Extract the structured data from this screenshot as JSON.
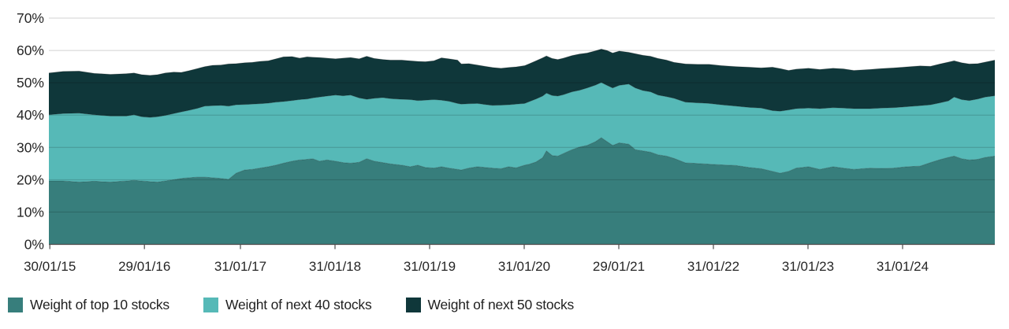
{
  "chart_data": {
    "type": "area",
    "stacked": true,
    "title": "",
    "xlabel": "",
    "ylabel": "",
    "grid": "horizontal",
    "legend_position": "bottom-left",
    "ylim": [
      0,
      70
    ],
    "y_ticks": [
      {
        "label": "0%",
        "value": 0
      },
      {
        "label": "10%",
        "value": 10
      },
      {
        "label": "20%",
        "value": 20
      },
      {
        "label": "30%",
        "value": 30
      },
      {
        "label": "40%",
        "value": 40
      },
      {
        "label": "50%",
        "value": 50
      },
      {
        "label": "60%",
        "value": 60
      },
      {
        "label": "70%",
        "value": 70
      }
    ],
    "x_ticks": [
      {
        "label": "30/01/15",
        "pos": 0.001
      },
      {
        "label": "29/01/16",
        "pos": 0.101
      },
      {
        "label": "31/01/17",
        "pos": 0.2025
      },
      {
        "label": "31/01/18",
        "pos": 0.3025
      },
      {
        "label": "31/01/19",
        "pos": 0.4025
      },
      {
        "label": "31/01/20",
        "pos": 0.5025
      },
      {
        "label": "29/01/21",
        "pos": 0.6025
      },
      {
        "label": "31/01/22",
        "pos": 0.7025
      },
      {
        "label": "31/01/23",
        "pos": 0.8025
      },
      {
        "label": "31/01/24",
        "pos": 0.9025
      }
    ],
    "x": [
      0.0,
      0.015,
      0.032,
      0.048,
      0.065,
      0.082,
      0.09,
      0.098,
      0.107,
      0.115,
      0.123,
      0.132,
      0.14,
      0.148,
      0.157,
      0.165,
      0.173,
      0.182,
      0.19,
      0.198,
      0.207,
      0.215,
      0.223,
      0.232,
      0.24,
      0.248,
      0.257,
      0.265,
      0.273,
      0.279,
      0.286,
      0.294,
      0.303,
      0.311,
      0.319,
      0.328,
      0.336,
      0.344,
      0.353,
      0.361,
      0.373,
      0.382,
      0.39,
      0.398,
      0.407,
      0.415,
      0.423,
      0.432,
      0.436,
      0.444,
      0.453,
      0.461,
      0.469,
      0.478,
      0.486,
      0.494,
      0.503,
      0.508,
      0.515,
      0.522,
      0.526,
      0.532,
      0.538,
      0.544,
      0.553,
      0.561,
      0.569,
      0.578,
      0.584,
      0.59,
      0.596,
      0.603,
      0.613,
      0.62,
      0.628,
      0.636,
      0.644,
      0.653,
      0.661,
      0.673,
      0.686,
      0.698,
      0.711,
      0.726,
      0.74,
      0.753,
      0.765,
      0.773,
      0.782,
      0.79,
      0.803,
      0.815,
      0.829,
      0.84,
      0.851,
      0.868,
      0.88,
      0.893,
      0.907,
      0.921,
      0.932,
      0.942,
      0.951,
      0.957,
      0.965,
      0.973,
      0.982,
      0.99,
      1.0
    ],
    "series": [
      {
        "name": "Weight of top 10 stocks",
        "color": "#377E7C",
        "values": [
          19.6,
          19.6,
          19.3,
          19.5,
          19.3,
          19.6,
          19.8,
          19.6,
          19.4,
          19.3,
          19.6,
          20.0,
          20.4,
          20.6,
          20.8,
          20.8,
          20.6,
          20.4,
          20.1,
          22.0,
          23.0,
          23.2,
          23.6,
          24.0,
          24.5,
          25.1,
          25.7,
          26.1,
          26.3,
          26.5,
          25.7,
          26.1,
          25.7,
          25.3,
          25.1,
          25.4,
          26.5,
          25.7,
          25.3,
          24.9,
          24.5,
          24.0,
          24.5,
          23.8,
          23.6,
          24.0,
          23.6,
          23.2,
          23.0,
          23.6,
          24.0,
          23.8,
          23.6,
          23.4,
          24.0,
          23.7,
          24.5,
          24.8,
          25.5,
          26.8,
          28.9,
          27.5,
          27.3,
          28.1,
          29.3,
          30.1,
          30.6,
          31.8,
          33.0,
          31.8,
          30.6,
          31.4,
          31.0,
          29.3,
          28.9,
          28.5,
          27.7,
          27.3,
          26.6,
          25.2,
          25.0,
          24.8,
          24.6,
          24.4,
          23.8,
          23.4,
          22.6,
          22.0,
          22.6,
          23.6,
          24.0,
          23.2,
          24.0,
          23.6,
          23.2,
          23.6,
          23.5,
          23.6,
          24.0,
          24.2,
          25.3,
          26.2,
          26.9,
          27.3,
          26.5,
          26.1,
          26.3,
          26.9,
          27.3
        ]
      },
      {
        "name": "Weight of next 40 stocks",
        "color": "#56B9B7",
        "values": [
          20.5,
          20.9,
          21.3,
          20.6,
          20.4,
          20.1,
          20.3,
          19.9,
          19.9,
          20.2,
          20.3,
          20.5,
          20.6,
          20.9,
          21.3,
          22.0,
          22.3,
          22.6,
          22.7,
          21.2,
          20.3,
          20.2,
          19.9,
          19.7,
          19.5,
          19.1,
          18.8,
          18.7,
          18.7,
          18.8,
          19.9,
          19.8,
          20.5,
          20.7,
          21.1,
          19.9,
          18.4,
          19.5,
          20.1,
          20.2,
          20.4,
          20.8,
          20.0,
          20.8,
          21.2,
          20.6,
          20.7,
          20.4,
          20.4,
          19.9,
          19.6,
          19.5,
          19.4,
          19.7,
          19.2,
          19.7,
          19.1,
          19.4,
          19.5,
          19.1,
          17.9,
          18.6,
          18.6,
          18.2,
          17.9,
          17.6,
          17.8,
          17.5,
          17.1,
          17.4,
          17.8,
          17.8,
          18.6,
          19.1,
          18.7,
          18.7,
          18.5,
          18.4,
          18.6,
          18.8,
          18.8,
          18.8,
          18.6,
          18.4,
          18.6,
          18.8,
          18.8,
          19.2,
          19.0,
          18.4,
          18.2,
          18.8,
          18.3,
          18.6,
          18.8,
          18.4,
          18.7,
          18.7,
          18.6,
          18.7,
          17.9,
          17.6,
          17.5,
          18.3,
          18.3,
          18.4,
          18.7,
          18.7,
          18.7
        ]
      },
      {
        "name": "Weight of next 50 stocks",
        "color": "#0F373A",
        "values": [
          12.9,
          13.0,
          13.0,
          12.8,
          12.9,
          13.1,
          12.9,
          13.0,
          13.0,
          13.0,
          13.1,
          12.8,
          12.2,
          12.2,
          12.3,
          12.2,
          12.5,
          12.5,
          13.0,
          12.7,
          12.9,
          12.9,
          13.1,
          13.1,
          13.4,
          13.8,
          13.6,
          12.8,
          13.0,
          12.6,
          12.2,
          11.7,
          11.2,
          11.6,
          11.6,
          12.1,
          13.3,
          12.3,
          11.8,
          11.9,
          12.1,
          12.0,
          12.1,
          11.9,
          12.0,
          13.1,
          13.1,
          13.4,
          12.4,
          12.4,
          11.9,
          11.8,
          11.7,
          11.4,
          11.5,
          11.5,
          11.7,
          11.7,
          11.8,
          11.8,
          11.5,
          11.4,
          11.3,
          11.3,
          11.2,
          11.2,
          10.8,
          10.6,
          10.3,
          10.8,
          10.8,
          10.6,
          9.8,
          10.6,
          10.9,
          11.0,
          11.3,
          11.3,
          11.1,
          11.8,
          11.9,
          12.1,
          12.1,
          12.2,
          12.4,
          12.4,
          13.4,
          13.2,
          12.2,
          12.2,
          12.3,
          12.1,
          12.2,
          12.1,
          11.8,
          12.1,
          12.2,
          12.3,
          12.3,
          12.3,
          11.9,
          12.0,
          12.0,
          11.2,
          11.4,
          11.3,
          10.9,
          10.8,
          11.0
        ]
      }
    ]
  }
}
